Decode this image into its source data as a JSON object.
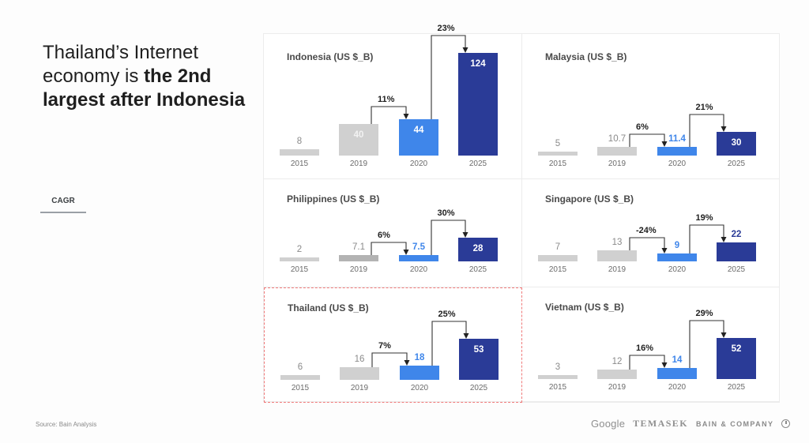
{
  "headline": {
    "regular": "Thailand’s Internet economy is ",
    "bold": "the 2nd largest after Indonesia"
  },
  "cagr_tab": {
    "label": "CAGR"
  },
  "footer": {
    "source": "Source: Bain Analysis",
    "logos": [
      "Google",
      "TEMASEK",
      "BAIN & COMPANY"
    ]
  },
  "colors": {
    "gray_bar": "#d0d0d0",
    "gray_bar_2019_dark": "#b3b3b3",
    "blue_2020": "#3f86ea",
    "navy_2025": "#2a3b97",
    "highlight_border": "#f07a7a"
  },
  "chart_data": [
    {
      "type": "bar",
      "title": "Indonesia (US $_B)",
      "categories": [
        "2015",
        "2019",
        "2020",
        "2025"
      ],
      "values": [
        8,
        40,
        44,
        124
      ],
      "value_labels": [
        "8",
        "40",
        "44",
        "124"
      ],
      "cagr": [
        {
          "from": "2019",
          "to": "2020",
          "label": "11%"
        },
        {
          "from": "2020",
          "to": "2025",
          "label": "23%"
        }
      ]
    },
    {
      "type": "bar",
      "title": "Malaysia (US $_B)",
      "categories": [
        "2015",
        "2019",
        "2020",
        "2025"
      ],
      "values": [
        5,
        10.7,
        11.4,
        30
      ],
      "value_labels": [
        "5",
        "10.7",
        "11.4",
        "30"
      ],
      "cagr": [
        {
          "from": "2019",
          "to": "2020",
          "label": "6%"
        },
        {
          "from": "2020",
          "to": "2025",
          "label": "21%"
        }
      ]
    },
    {
      "type": "bar",
      "title": "Philippines (US $_B)",
      "categories": [
        "2015",
        "2019",
        "2020",
        "2025"
      ],
      "values": [
        2,
        7.1,
        7.5,
        28
      ],
      "value_labels": [
        "2",
        "7.1",
        "7.5",
        "28"
      ],
      "cagr": [
        {
          "from": "2019",
          "to": "2020",
          "label": "6%"
        },
        {
          "from": "2020",
          "to": "2025",
          "label": "30%"
        }
      ]
    },
    {
      "type": "bar",
      "title": "Singapore (US $_B)",
      "categories": [
        "2015",
        "2019",
        "2020",
        "2025"
      ],
      "values": [
        7,
        13,
        9,
        22
      ],
      "value_labels": [
        "7",
        "13",
        "9",
        "22"
      ],
      "cagr": [
        {
          "from": "2019",
          "to": "2020",
          "label": "-24%"
        },
        {
          "from": "2020",
          "to": "2025",
          "label": "19%"
        }
      ]
    },
    {
      "type": "bar",
      "title": "Thailand (US $_B)",
      "categories": [
        "2015",
        "2019",
        "2020",
        "2025"
      ],
      "values": [
        6,
        16,
        18,
        53
      ],
      "value_labels": [
        "6",
        "16",
        "18",
        "53"
      ],
      "cagr": [
        {
          "from": "2019",
          "to": "2020",
          "label": "7%"
        },
        {
          "from": "2020",
          "to": "2025",
          "label": "25%"
        }
      ],
      "highlighted": true
    },
    {
      "type": "bar",
      "title": "Vietnam (US $_B)",
      "categories": [
        "2015",
        "2019",
        "2020",
        "2025"
      ],
      "values": [
        3,
        12,
        14,
        52
      ],
      "value_labels": [
        "3",
        "12",
        "14",
        "52"
      ],
      "cagr": [
        {
          "from": "2019",
          "to": "2020",
          "label": "16%"
        },
        {
          "from": "2020",
          "to": "2025",
          "label": "29%"
        }
      ]
    }
  ]
}
